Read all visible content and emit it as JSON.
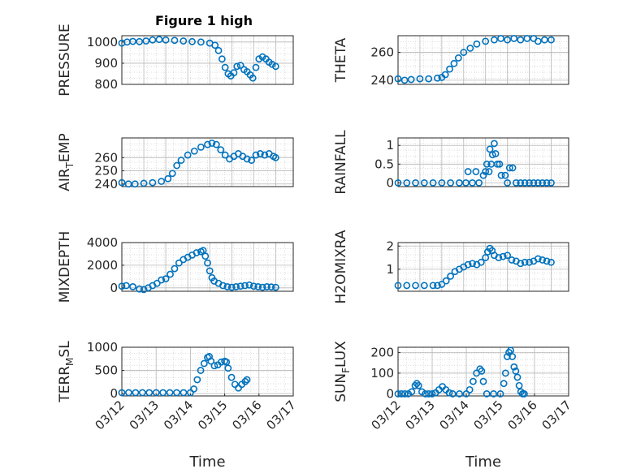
{
  "figure": {
    "title": "Figure 1 high",
    "xlabel": "Time"
  },
  "colors": {
    "marker": "#0072BD",
    "axis": "#262626",
    "grid": "#b8b8b8",
    "minor_grid": "#d2d2d2"
  },
  "chart_data": [
    {
      "type": "scatter",
      "ylabel": "PRESSURE",
      "ylim": [
        800,
        1030
      ],
      "yticks": [
        800,
        900,
        1000
      ],
      "xlim": [
        0,
        3.9
      ],
      "x_ticks": [],
      "grid": "major+minor",
      "points": [
        [
          0,
          995
        ],
        [
          0.12,
          1000
        ],
        [
          0.25,
          1003
        ],
        [
          0.4,
          1002
        ],
        [
          0.55,
          1005
        ],
        [
          0.7,
          1010
        ],
        [
          0.85,
          1012
        ],
        [
          1.0,
          1010
        ],
        [
          1.2,
          1008
        ],
        [
          1.4,
          1005
        ],
        [
          1.6,
          1002
        ],
        [
          1.8,
          1000
        ],
        [
          2.0,
          995
        ],
        [
          2.12,
          985
        ],
        [
          2.2,
          960
        ],
        [
          2.28,
          920
        ],
        [
          2.35,
          880
        ],
        [
          2.42,
          850
        ],
        [
          2.48,
          840
        ],
        [
          2.55,
          855
        ],
        [
          2.62,
          885
        ],
        [
          2.7,
          890
        ],
        [
          2.78,
          870
        ],
        [
          2.85,
          860
        ],
        [
          2.92,
          845
        ],
        [
          2.98,
          830
        ],
        [
          3.05,
          880
        ],
        [
          3.12,
          920
        ],
        [
          3.2,
          930
        ],
        [
          3.28,
          920
        ],
        [
          3.35,
          905
        ],
        [
          3.42,
          895
        ],
        [
          3.5,
          885
        ]
      ]
    },
    {
      "type": "scatter",
      "ylabel": "THETA",
      "ylim": [
        237,
        272
      ],
      "yticks": [
        240,
        260
      ],
      "xlim": [
        0,
        3.9
      ],
      "x_ticks": [],
      "grid": "major+minor",
      "points": [
        [
          0,
          241
        ],
        [
          0.15,
          240
        ],
        [
          0.3,
          240.5
        ],
        [
          0.5,
          241
        ],
        [
          0.7,
          241
        ],
        [
          0.9,
          241.5
        ],
        [
          1.0,
          242
        ],
        [
          1.08,
          244
        ],
        [
          1.18,
          248
        ],
        [
          1.28,
          252
        ],
        [
          1.38,
          256
        ],
        [
          1.5,
          260
        ],
        [
          1.65,
          263
        ],
        [
          1.8,
          266
        ],
        [
          2.0,
          268
        ],
        [
          2.2,
          269
        ],
        [
          2.35,
          270
        ],
        [
          2.5,
          269
        ],
        [
          2.65,
          270
        ],
        [
          2.8,
          269
        ],
        [
          2.95,
          270
        ],
        [
          3.1,
          270
        ],
        [
          3.2,
          268
        ],
        [
          3.35,
          269
        ],
        [
          3.5,
          269
        ]
      ]
    },
    {
      "type": "scatter",
      "ylabel": "AIR_TEMP",
      "ylim": [
        238,
        275
      ],
      "yticks": [
        240,
        250,
        260
      ],
      "xlim": [
        0,
        3.9
      ],
      "x_ticks": [],
      "grid": "major+minor",
      "points": [
        [
          0,
          241
        ],
        [
          0.15,
          240
        ],
        [
          0.3,
          240
        ],
        [
          0.5,
          240.5
        ],
        [
          0.7,
          241
        ],
        [
          0.9,
          242
        ],
        [
          1.05,
          244
        ],
        [
          1.15,
          248
        ],
        [
          1.25,
          254
        ],
        [
          1.35,
          258
        ],
        [
          1.5,
          262
        ],
        [
          1.65,
          265
        ],
        [
          1.8,
          268
        ],
        [
          1.95,
          270
        ],
        [
          2.05,
          271
        ],
        [
          2.15,
          270
        ],
        [
          2.25,
          266
        ],
        [
          2.35,
          262
        ],
        [
          2.45,
          259
        ],
        [
          2.55,
          261
        ],
        [
          2.65,
          263
        ],
        [
          2.75,
          261
        ],
        [
          2.85,
          259
        ],
        [
          2.95,
          258
        ],
        [
          3.05,
          262
        ],
        [
          3.15,
          263
        ],
        [
          3.25,
          262
        ],
        [
          3.35,
          263
        ],
        [
          3.45,
          261
        ],
        [
          3.5,
          260
        ]
      ]
    },
    {
      "type": "scatter",
      "ylabel": "RAINFALL",
      "ylim": [
        -0.1,
        1.2
      ],
      "yticks": [
        0,
        0.5,
        1
      ],
      "ytick_labels": [
        "0",
        "0.5",
        "1"
      ],
      "xlim": [
        0,
        3.9
      ],
      "x_ticks": [],
      "grid": "major+minor",
      "points": [
        [
          0,
          0
        ],
        [
          0.2,
          0
        ],
        [
          0.4,
          0
        ],
        [
          0.6,
          0
        ],
        [
          0.8,
          0
        ],
        [
          1.0,
          0
        ],
        [
          1.2,
          0
        ],
        [
          1.4,
          0
        ],
        [
          1.55,
          0
        ],
        [
          1.6,
          0.3
        ],
        [
          1.7,
          0
        ],
        [
          1.78,
          0.3
        ],
        [
          1.85,
          0
        ],
        [
          1.95,
          0.2
        ],
        [
          2.0,
          0.3
        ],
        [
          2.03,
          0.5
        ],
        [
          2.08,
          0.3
        ],
        [
          2.1,
          0.9
        ],
        [
          2.13,
          0.5
        ],
        [
          2.16,
          0.75
        ],
        [
          2.2,
          1.05
        ],
        [
          2.23,
          0.78
        ],
        [
          2.27,
          0.5
        ],
        [
          2.32,
          0.5
        ],
        [
          2.36,
          0.2
        ],
        [
          2.45,
          0.2
        ],
        [
          2.5,
          0
        ],
        [
          2.55,
          0.4
        ],
        [
          2.62,
          0.4
        ],
        [
          2.7,
          0
        ],
        [
          2.8,
          0
        ],
        [
          2.9,
          0
        ],
        [
          3.0,
          0
        ],
        [
          3.1,
          0
        ],
        [
          3.2,
          0
        ],
        [
          3.3,
          0
        ],
        [
          3.4,
          0
        ],
        [
          3.5,
          0
        ]
      ]
    },
    {
      "type": "scatter",
      "ylabel": "MIXDEPTH",
      "ylim": [
        -300,
        4000
      ],
      "yticks": [
        0,
        2000,
        4000
      ],
      "xlim": [
        0,
        3.9
      ],
      "x_ticks": [],
      "grid": "major+minor",
      "points": [
        [
          0,
          150
        ],
        [
          0.1,
          200
        ],
        [
          0.25,
          100
        ],
        [
          0.4,
          -100
        ],
        [
          0.5,
          -150
        ],
        [
          0.6,
          0
        ],
        [
          0.7,
          200
        ],
        [
          0.8,
          400
        ],
        [
          0.9,
          700
        ],
        [
          1.0,
          800
        ],
        [
          1.1,
          1200
        ],
        [
          1.2,
          1700
        ],
        [
          1.3,
          2200
        ],
        [
          1.4,
          2500
        ],
        [
          1.5,
          2700
        ],
        [
          1.6,
          2900
        ],
        [
          1.7,
          3100
        ],
        [
          1.8,
          3200
        ],
        [
          1.85,
          3300
        ],
        [
          1.9,
          2800
        ],
        [
          1.95,
          2200
        ],
        [
          2.0,
          1500
        ],
        [
          2.05,
          900
        ],
        [
          2.1,
          600
        ],
        [
          2.2,
          400
        ],
        [
          2.3,
          200
        ],
        [
          2.4,
          100
        ],
        [
          2.5,
          50
        ],
        [
          2.6,
          100
        ],
        [
          2.7,
          150
        ],
        [
          2.8,
          200
        ],
        [
          2.9,
          250
        ],
        [
          3.0,
          150
        ],
        [
          3.1,
          100
        ],
        [
          3.2,
          50
        ],
        [
          3.3,
          100
        ],
        [
          3.4,
          80
        ],
        [
          3.5,
          50
        ]
      ]
    },
    {
      "type": "scatter",
      "ylabel": "H2OMIXRA",
      "ylim": [
        0.05,
        2.15
      ],
      "yticks": [
        1,
        2
      ],
      "xlim": [
        0,
        3.9
      ],
      "x_ticks": [],
      "grid": "major+minor",
      "points": [
        [
          0,
          0.3
        ],
        [
          0.2,
          0.3
        ],
        [
          0.4,
          0.3
        ],
        [
          0.6,
          0.3
        ],
        [
          0.8,
          0.3
        ],
        [
          0.9,
          0.3
        ],
        [
          1.0,
          0.35
        ],
        [
          1.1,
          0.5
        ],
        [
          1.2,
          0.7
        ],
        [
          1.3,
          0.9
        ],
        [
          1.4,
          1.0
        ],
        [
          1.5,
          1.1
        ],
        [
          1.6,
          1.2
        ],
        [
          1.7,
          1.25
        ],
        [
          1.8,
          1.2
        ],
        [
          1.9,
          1.3
        ],
        [
          2.0,
          1.5
        ],
        [
          2.05,
          1.75
        ],
        [
          2.1,
          1.9
        ],
        [
          2.15,
          1.8
        ],
        [
          2.2,
          1.6
        ],
        [
          2.3,
          1.5
        ],
        [
          2.4,
          1.55
        ],
        [
          2.5,
          1.6
        ],
        [
          2.6,
          1.4
        ],
        [
          2.7,
          1.35
        ],
        [
          2.8,
          1.25
        ],
        [
          2.9,
          1.3
        ],
        [
          3.0,
          1.3
        ],
        [
          3.1,
          1.35
        ],
        [
          3.2,
          1.45
        ],
        [
          3.3,
          1.4
        ],
        [
          3.4,
          1.35
        ],
        [
          3.5,
          1.3
        ]
      ]
    },
    {
      "type": "scatter",
      "ylabel": "TERR_MSL",
      "ylim": [
        -50,
        1000
      ],
      "yticks": [
        0,
        500,
        1000
      ],
      "xlim": [
        0,
        5
      ],
      "x_ticks": [
        0,
        1,
        2,
        3,
        4,
        5
      ],
      "x_tick_labels": [
        "03/12",
        "03/13",
        "03/14",
        "03/15",
        "03/16",
        "03/17"
      ],
      "grid": "major+minor",
      "points": [
        [
          0,
          20
        ],
        [
          0.2,
          20
        ],
        [
          0.4,
          20
        ],
        [
          0.6,
          20
        ],
        [
          0.8,
          20
        ],
        [
          1.0,
          20
        ],
        [
          1.2,
          20
        ],
        [
          1.4,
          20
        ],
        [
          1.6,
          20
        ],
        [
          1.8,
          20
        ],
        [
          2.0,
          20
        ],
        [
          2.1,
          100
        ],
        [
          2.2,
          300
        ],
        [
          2.3,
          500
        ],
        [
          2.4,
          650
        ],
        [
          2.5,
          780
        ],
        [
          2.55,
          800
        ],
        [
          2.6,
          700
        ],
        [
          2.7,
          600
        ],
        [
          2.8,
          620
        ],
        [
          2.9,
          680
        ],
        [
          3.0,
          700
        ],
        [
          3.05,
          680
        ],
        [
          3.1,
          550
        ],
        [
          3.2,
          350
        ],
        [
          3.3,
          200
        ],
        [
          3.4,
          120
        ],
        [
          3.5,
          200
        ],
        [
          3.6,
          260
        ],
        [
          3.65,
          300
        ]
      ]
    },
    {
      "type": "scatter",
      "ylabel": "SUN_FLUX",
      "ylim": [
        -10,
        225
      ],
      "yticks": [
        0,
        100,
        200
      ],
      "xlim": [
        0,
        5
      ],
      "x_ticks": [
        0,
        1,
        2,
        3,
        4,
        5
      ],
      "x_tick_labels": [
        "03/12",
        "03/13",
        "03/14",
        "03/15",
        "03/16",
        "03/17"
      ],
      "grid": "major+minor",
      "points": [
        [
          0,
          0
        ],
        [
          0.1,
          0
        ],
        [
          0.2,
          0
        ],
        [
          0.3,
          0
        ],
        [
          0.4,
          10
        ],
        [
          0.5,
          40
        ],
        [
          0.55,
          50
        ],
        [
          0.6,
          40
        ],
        [
          0.7,
          10
        ],
        [
          0.8,
          0
        ],
        [
          0.9,
          0
        ],
        [
          1.0,
          0
        ],
        [
          1.1,
          5
        ],
        [
          1.2,
          20
        ],
        [
          1.3,
          35
        ],
        [
          1.4,
          20
        ],
        [
          1.5,
          5
        ],
        [
          1.6,
          0
        ],
        [
          1.8,
          0
        ],
        [
          2.0,
          0
        ],
        [
          2.1,
          20
        ],
        [
          2.2,
          60
        ],
        [
          2.3,
          100
        ],
        [
          2.4,
          120
        ],
        [
          2.45,
          110
        ],
        [
          2.5,
          60
        ],
        [
          2.6,
          0
        ],
        [
          2.8,
          0
        ],
        [
          3.0,
          0
        ],
        [
          3.1,
          50
        ],
        [
          3.15,
          100
        ],
        [
          3.2,
          180
        ],
        [
          3.25,
          200
        ],
        [
          3.3,
          210
        ],
        [
          3.35,
          180
        ],
        [
          3.4,
          130
        ],
        [
          3.45,
          110
        ],
        [
          3.5,
          80
        ],
        [
          3.55,
          40
        ],
        [
          3.6,
          10
        ],
        [
          3.65,
          0
        ],
        [
          3.7,
          0
        ]
      ]
    }
  ]
}
